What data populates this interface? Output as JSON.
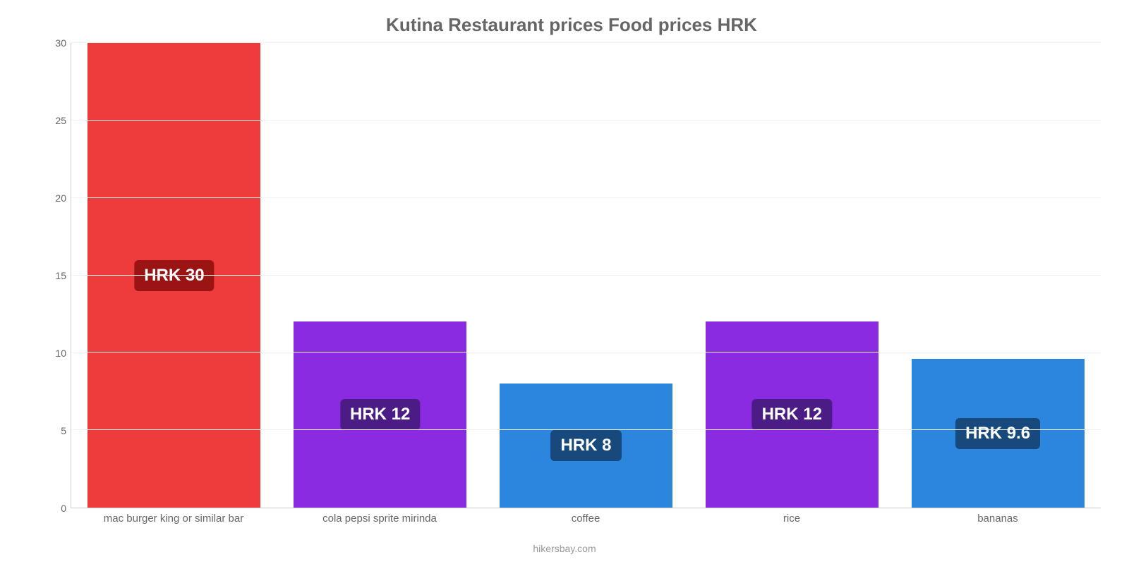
{
  "chart": {
    "type": "bar",
    "title": "Kutina Restaurant prices Food prices HRK",
    "title_fontsize": 26,
    "title_color": "#666666",
    "background_color": "#ffffff",
    "grid_color": "#f2f2f2",
    "axis_line_color": "#cccccc",
    "tick_label_color": "#666666",
    "tick_label_fontsize": 14,
    "x_label_fontsize": 15,
    "ylim": [
      0,
      30
    ],
    "yticks": [
      0,
      5,
      10,
      15,
      20,
      25,
      30
    ],
    "bar_width_pct": 84,
    "value_label_fontsize": 24,
    "value_label_text_color": "#ffffff",
    "currency_prefix": "HRK ",
    "categories": [
      "mac burger king or similar bar",
      "cola pepsi sprite mirinda",
      "coffee",
      "rice",
      "bananas"
    ],
    "values": [
      30,
      12,
      8,
      12,
      9.6
    ],
    "value_labels": [
      "HRK 30",
      "HRK 12",
      "HRK 8",
      "HRK 12",
      "HRK 9.6"
    ],
    "bar_colors": [
      "#ee3c3c",
      "#8a2be2",
      "#2c86dd",
      "#8a2be2",
      "#2c86dd"
    ],
    "badge_colors": [
      "#9b1414",
      "#4b1c85",
      "#17497c",
      "#4b1c85",
      "#17497c"
    ],
    "attribution": "hikersbay.com",
    "attribution_color": "#999999",
    "attribution_fontsize": 14
  }
}
